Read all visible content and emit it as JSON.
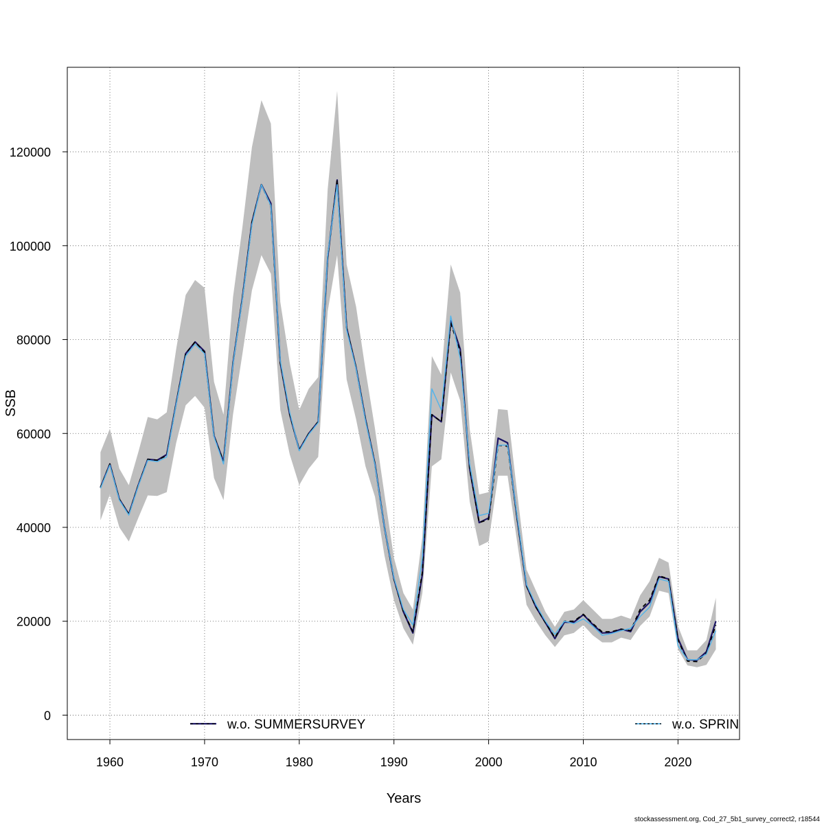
{
  "chart_data": {
    "type": "line",
    "xlabel": "Years",
    "ylabel": "SSB",
    "xlim": [
      1955.5,
      2026.5
    ],
    "ylim": [
      -5200,
      138000
    ],
    "x_ticks": [
      1960,
      1970,
      1980,
      1990,
      2000,
      2010,
      2020
    ],
    "y_ticks": [
      0,
      20000,
      40000,
      60000,
      80000,
      100000,
      120000
    ],
    "grid": true,
    "legend_position": "bottom",
    "legend": [
      "w.o. SUMMERSURVEY",
      "w.o. SPRIN"
    ],
    "band_color": "#bebebe",
    "x": [
      1959,
      1960,
      1961,
      1962,
      1963,
      1964,
      1965,
      1966,
      1967,
      1968,
      1969,
      1970,
      1971,
      1972,
      1973,
      1974,
      1975,
      1976,
      1977,
      1978,
      1979,
      1980,
      1981,
      1982,
      1983,
      1984,
      1985,
      1986,
      1987,
      1988,
      1989,
      1990,
      1991,
      1992,
      1993,
      1994,
      1995,
      1996,
      1997,
      1998,
      1999,
      2000,
      2001,
      2002,
      2003,
      2004,
      2005,
      2006,
      2007,
      2008,
      2009,
      2010,
      2011,
      2012,
      2013,
      2014,
      2015,
      2016,
      2017,
      2018,
      2019,
      2020,
      2021,
      2022,
      2023,
      2024
    ],
    "band_upper": [
      56000,
      61000,
      52500,
      49000,
      56000,
      63500,
      63000,
      64500,
      78000,
      89500,
      92700,
      91000,
      71000,
      64000,
      89000,
      104000,
      121000,
      131000,
      126000,
      88000,
      75000,
      65000,
      69500,
      72000,
      112000,
      133000,
      96000,
      87000,
      73500,
      61000,
      47000,
      33500,
      26000,
      22500,
      38000,
      76500,
      72500,
      96000,
      90000,
      61000,
      47000,
      47500,
      65200,
      65000,
      47500,
      31000,
      26500,
      22000,
      18800,
      22000,
      22500,
      24500,
      22500,
      20500,
      20500,
      21200,
      20500,
      25500,
      28500,
      33500,
      32500,
      19000,
      13800,
      13800,
      16000,
      25000
    ],
    "band_lower": [
      41500,
      47000,
      40000,
      37000,
      42000,
      46800,
      46700,
      47500,
      58000,
      66000,
      68000,
      65500,
      50500,
      45800,
      64000,
      77000,
      90500,
      98000,
      94000,
      65000,
      55500,
      49000,
      52500,
      55000,
      86000,
      98000,
      71500,
      63000,
      53000,
      46500,
      34000,
      24500,
      18500,
      15000,
      26000,
      53000,
      54500,
      73000,
      67000,
      45500,
      36000,
      37000,
      51000,
      51000,
      37000,
      23500,
      20000,
      17000,
      14500,
      17000,
      17500,
      19200,
      17000,
      15500,
      15500,
      16500,
      16000,
      19000,
      21000,
      26500,
      26000,
      14000,
      10600,
      10200,
      10700,
      14000
    ],
    "series": [
      {
        "name": "w.o. SUMMERSURVEY",
        "color": "#1b1464",
        "width": 2.2,
        "dash": "",
        "values": [
          48500,
          53500,
          46000,
          42800,
          49000,
          54500,
          54300,
          55500,
          66500,
          77000,
          79500,
          77500,
          59500,
          54000,
          75000,
          89000,
          105000,
          113000,
          109000,
          75000,
          64000,
          56500,
          60000,
          62500,
          97500,
          114000,
          82500,
          74000,
          63000,
          53500,
          40000,
          29000,
          22000,
          17500,
          30000,
          64000,
          62500,
          84000,
          78000,
          52500,
          41000,
          42000,
          59000,
          58000,
          42000,
          27500,
          23000,
          19700,
          16300,
          19800,
          19800,
          21400,
          19300,
          17500,
          17600,
          18300,
          17800,
          22000,
          24000,
          29500,
          29000,
          16300,
          11800,
          11700,
          13500,
          20000
        ]
      },
      {
        "name": "run-dashed",
        "color": "#000000",
        "width": 1.8,
        "dash": "6,5",
        "values": [
          48500,
          53500,
          46000,
          42800,
          49000,
          54500,
          54300,
          55300,
          66500,
          77000,
          79500,
          77300,
          59500,
          54000,
          75000,
          89000,
          105000,
          113000,
          108500,
          75000,
          64000,
          56500,
          60000,
          62500,
          97500,
          114000,
          82500,
          74000,
          63000,
          53500,
          40000,
          29000,
          22000,
          17800,
          30500,
          64000,
          62500,
          83500,
          77500,
          52500,
          41000,
          41700,
          57500,
          57300,
          42000,
          27500,
          23000,
          19700,
          16500,
          20000,
          20000,
          21500,
          19500,
          17700,
          17800,
          18300,
          18000,
          22500,
          24500,
          29700,
          29000,
          16000,
          11500,
          11400,
          13200,
          19200
        ]
      },
      {
        "name": "w.o. SPRIN",
        "color": "#56b4e9",
        "width": 1.5,
        "dash": "",
        "values": [
          48300,
          53300,
          45800,
          42600,
          48800,
          54300,
          54000,
          55000,
          66300,
          76500,
          79000,
          77000,
          59300,
          53500,
          74800,
          88700,
          104500,
          113000,
          108500,
          75500,
          64500,
          56300,
          59800,
          62300,
          98000,
          113000,
          82000,
          73800,
          62700,
          53300,
          40000,
          29200,
          22500,
          19200,
          33500,
          69500,
          65000,
          85000,
          76000,
          53500,
          42500,
          43000,
          57500,
          57500,
          42500,
          27800,
          23500,
          20000,
          17200,
          20000,
          19500,
          20500,
          19000,
          17000,
          17400,
          18000,
          18500,
          21000,
          23000,
          29000,
          28500,
          14800,
          11800,
          11800,
          13000,
          18000
        ]
      }
    ]
  },
  "footer": "stockassessment.org, Cod_27_5b1_survey_correct2, r18544"
}
